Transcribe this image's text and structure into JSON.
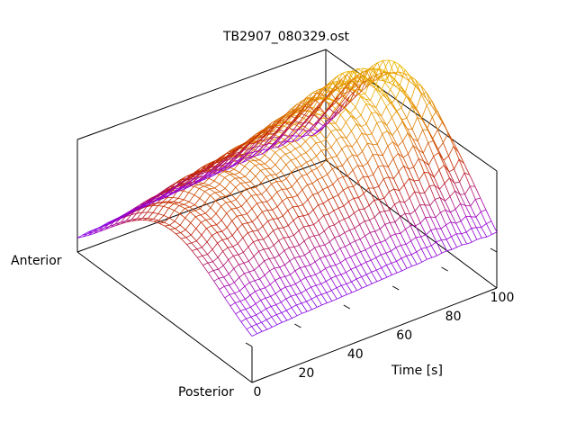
{
  "chart_data": {
    "type": "surface",
    "title": "TB2907_080329.ost",
    "xlabel": "Time [s]",
    "ylabel_front": "Posterior",
    "ylabel_back": "Anterior",
    "xlim": [
      0,
      100
    ],
    "xticks": [
      "0",
      "20",
      "40",
      "60",
      "80",
      "100"
    ],
    "grid": false,
    "legend": "none",
    "colormap": [
      "#7000ff",
      "#a000c0",
      "#c02000",
      "#e08000",
      "#f0c000"
    ],
    "surface": {
      "time_samples": 50,
      "position_samples": 33,
      "description_points": [
        {
          "time": 0,
          "peak_height": 0.42
        },
        {
          "time": 20,
          "peak_height": 0.55
        },
        {
          "time": 40,
          "peak_height": 0.62
        },
        {
          "time": 60,
          "peak_height": 0.72
        },
        {
          "time": 80,
          "peak_height": 0.82
        },
        {
          "time": 100,
          "peak_height": 0.78
        }
      ]
    }
  }
}
